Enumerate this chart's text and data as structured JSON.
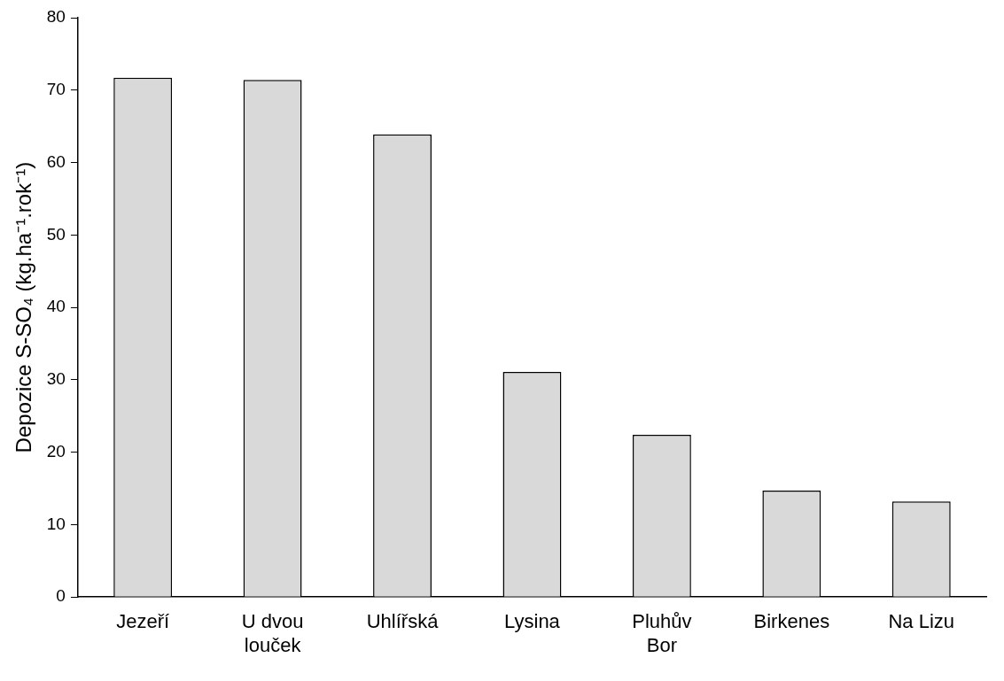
{
  "chart_data": {
    "type": "bar",
    "ylabel": "Depozice S-SO₄ (kg.ha⁻¹.rok⁻¹)",
    "categories": [
      "Jezeří",
      "U dvou louček",
      "Uhlířská",
      "Lysina",
      "Pluhův Bor",
      "Birkenes",
      "Na Lizu"
    ],
    "values": [
      71.7,
      71.4,
      63.9,
      31.1,
      22.4,
      14.7,
      13.2
    ],
    "color": "#d9d9d9",
    "ylim": [
      0,
      80
    ],
    "yticks": [
      0,
      10,
      20,
      30,
      40,
      50,
      60,
      70,
      80
    ],
    "grid": false,
    "legend": false
  }
}
